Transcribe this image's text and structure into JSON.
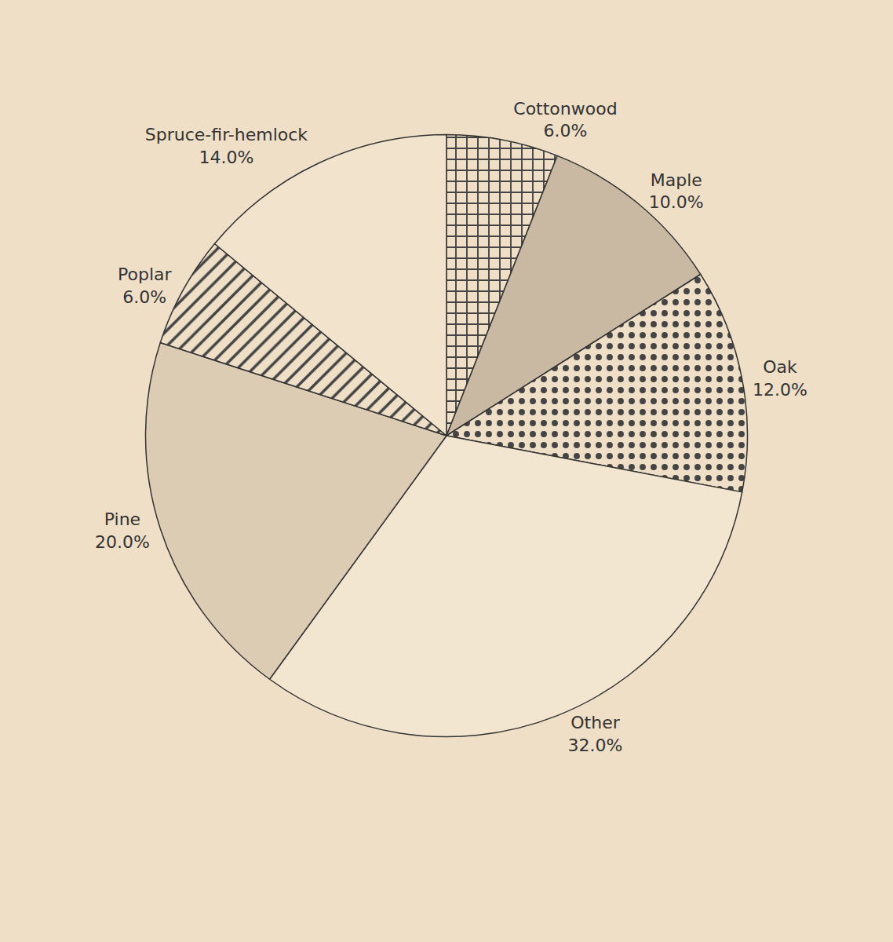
{
  "chart_data": {
    "type": "pie",
    "categories": [
      "Cottonwood",
      "Maple",
      "Oak",
      "Other",
      "Pine",
      "Poplar",
      "Spruce-fir-hemlock"
    ],
    "values": [
      6,
      10,
      12,
      32,
      20,
      6,
      14
    ],
    "value_labels": [
      "6.0%",
      "10.0%",
      "12.0%",
      "32.0%",
      "20.0%",
      "6.0%",
      "14.0%"
    ],
    "colors": [
      "#efdfc7",
      "#c9b9a2",
      "#efdfc7",
      "#f3e6d1",
      "#ddccb4",
      "#efdfc7",
      "#f1e3cc"
    ],
    "data_labels": true
  }
}
